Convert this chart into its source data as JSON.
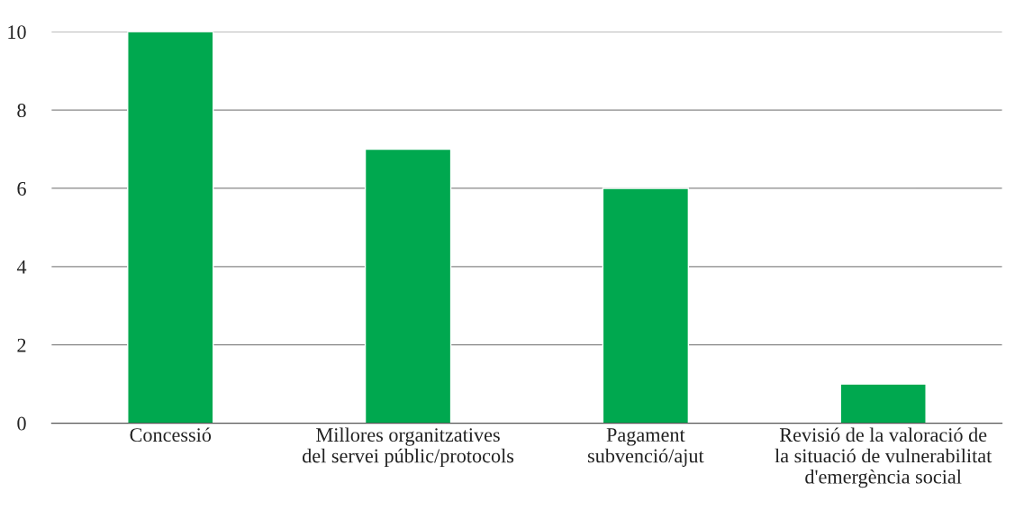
{
  "chart_data": {
    "type": "bar",
    "categories": [
      "Concessió",
      "Millores organitzatives\ndel servei públic/protocols",
      "Pagament\nsubvenció/ajut",
      "Revisió de la valoració de\nla situació de vulnerabilitat\nd'emergència social"
    ],
    "values": [
      10,
      7,
      6,
      1
    ],
    "color": "#00a84f",
    "ylim": [
      0,
      10
    ],
    "yticks": [
      0,
      2,
      4,
      6,
      8,
      10
    ],
    "grid": "y",
    "legend": false
  }
}
